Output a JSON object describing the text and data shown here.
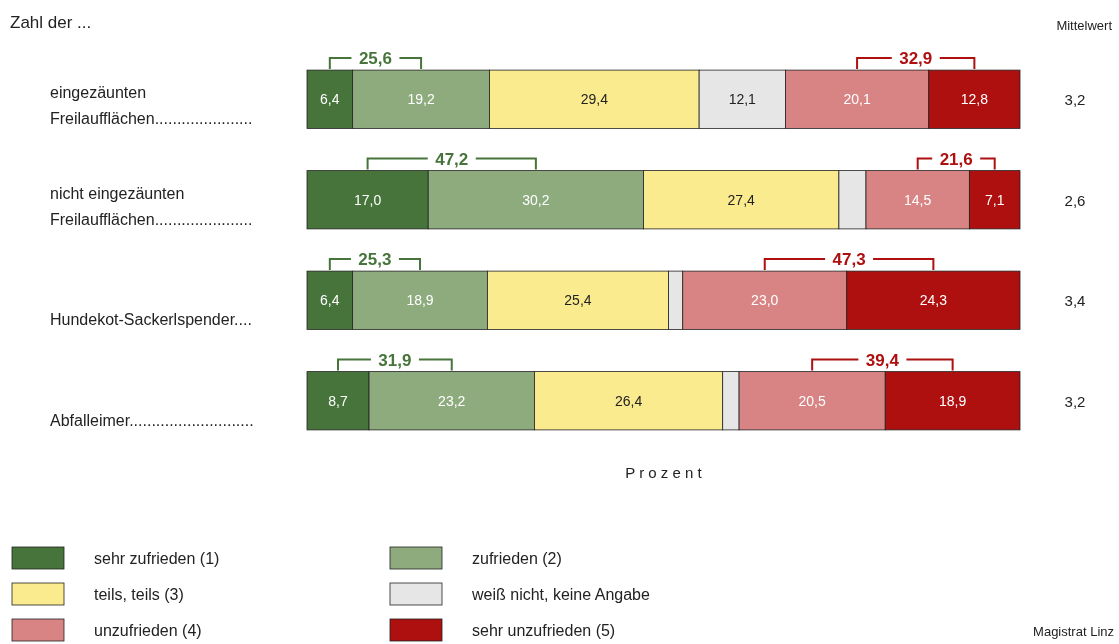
{
  "chart_data": {
    "type": "bar",
    "orientation": "horizontal",
    "stacked": true,
    "title": "Zahl der ...",
    "xlabel": "P r o z e n t",
    "categories": [
      "eingezäunten\nFreilaufflächen......................",
      "nicht eingezäunten\nFreilaufflächen......................",
      "Hundekot-Sackerlspender....",
      "Abfalleimer............................"
    ],
    "xlim": [
      0,
      100
    ],
    "legend": "bottom",
    "series": [
      {
        "name": "sehr zufrieden (1)",
        "color": "#47743a",
        "values": [
          6.4,
          17.0,
          6.4,
          8.7
        ],
        "value_labels": [
          "6,4",
          "17,0",
          "6,4",
          "8,7"
        ]
      },
      {
        "name": "zufrieden  (2)",
        "color": "#8eab7e",
        "values": [
          19.2,
          30.2,
          18.9,
          23.2
        ],
        "value_labels": [
          "19,2",
          "30,2",
          "18,9",
          "23,2"
        ]
      },
      {
        "name": "teils, teils  (3)",
        "color": "#fbeb8f",
        "values": [
          29.4,
          27.4,
          25.4,
          26.4
        ],
        "value_labels": [
          "29,4",
          "27,4",
          "25,4",
          "26,4"
        ]
      },
      {
        "name": "weiß nicht, keine Angabe",
        "color": "#e6e6e6",
        "values": [
          12.1,
          3.8,
          2.0,
          2.3
        ],
        "value_labels": [
          "12,1",
          null,
          null,
          null
        ]
      },
      {
        "name": "unzufrieden  (4)",
        "color": "#d98484",
        "values": [
          20.1,
          14.5,
          23.0,
          20.5
        ],
        "value_labels": [
          "20,1",
          "14,5",
          "23,0",
          "20,5"
        ]
      },
      {
        "name": "sehr unzufrieden (5)",
        "color": "#ae1010",
        "values": [
          12.8,
          7.1,
          24.3,
          18.9
        ],
        "value_labels": [
          "12,8",
          "7,1",
          "24,3",
          "18,9"
        ]
      }
    ],
    "annotations": [
      "Mittelwert",
      "Magistrat Linz",
      "25,6",
      "32,9",
      "47,2",
      "21,6",
      "25,3",
      "47,3",
      "31,9",
      "39,4",
      "3,2",
      "2,6",
      "3,4",
      "3,2"
    ]
  }
}
